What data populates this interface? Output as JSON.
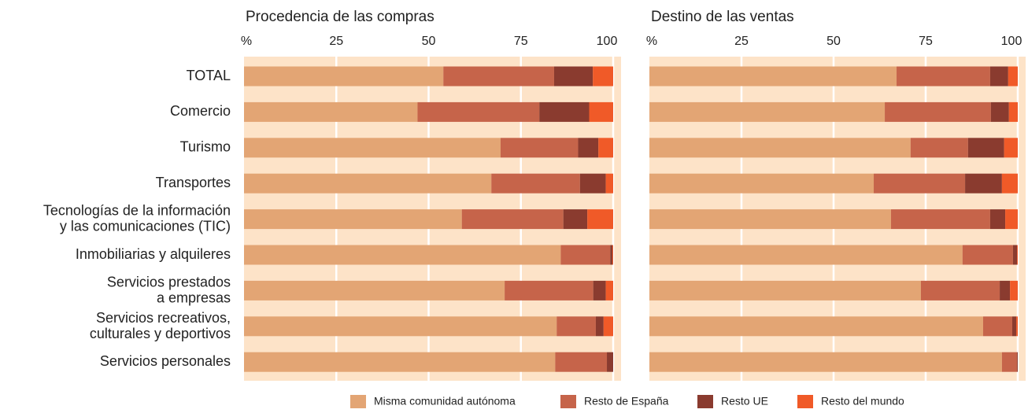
{
  "chart_data": [
    {
      "type": "bar",
      "orientation": "horizontal",
      "stacked": true,
      "title": "Procedencia de las compras",
      "categories": [
        "TOTAL",
        "Comercio",
        "Turismo",
        "Transportes",
        "Tecnologías de la información\ny las comunicaciones (TIC)",
        "Inmobiliarias y alquileres",
        "Servicios prestados\na empresas",
        "Servicios recreativos,\nculturales y deportivos",
        "Servicios personales"
      ],
      "series": [
        {
          "name": "Misma comunidad autónoma",
          "color": "#e3a574",
          "values": [
            54,
            47,
            69.5,
            67,
            59,
            85.8,
            70.6,
            84.7,
            84.3
          ]
        },
        {
          "name": "Resto de España",
          "color": "#c6644a",
          "values": [
            30,
            33,
            21,
            24,
            27.5,
            13.4,
            24,
            10.6,
            14
          ]
        },
        {
          "name": "Resto UE",
          "color": "#8a3b2f",
          "values": [
            10.5,
            13.5,
            5.5,
            7,
            6.5,
            0.6,
            3.4,
            2.1,
            1.7
          ]
        },
        {
          "name": "Resto del mundo",
          "color": "#f05a28",
          "values": [
            5.5,
            6.5,
            4,
            2,
            7,
            0.2,
            2,
            2.6,
            0
          ]
        }
      ],
      "xlim": [
        0,
        100
      ],
      "xticks": [
        {
          "value": 0,
          "label": "%"
        },
        25,
        50,
        75,
        100
      ],
      "grid": true,
      "legend": "bottom"
    },
    {
      "type": "bar",
      "orientation": "horizontal",
      "stacked": true,
      "title": "Destino de las ventas",
      "series": [
        {
          "values": [
            67.1,
            63.9,
            70.9,
            60.9,
            65.6,
            85,
            73.7,
            90.6,
            95.7
          ]
        },
        {
          "values": [
            25.4,
            28.8,
            15.6,
            24.8,
            26.9,
            13.7,
            21.4,
            7.9,
            4.1
          ]
        },
        {
          "values": [
            4.9,
            4.9,
            9.8,
            10,
            4.1,
            1.1,
            2.8,
            1.1,
            0.2
          ]
        },
        {
          "values": [
            2.6,
            2.4,
            3.7,
            4.3,
            3.4,
            0.2,
            2.1,
            0.4,
            0
          ]
        }
      ],
      "xlim": [
        0,
        100
      ],
      "xticks": [
        {
          "value": 0,
          "label": "%"
        },
        25,
        50,
        75,
        100
      ],
      "grid": true
    }
  ]
}
